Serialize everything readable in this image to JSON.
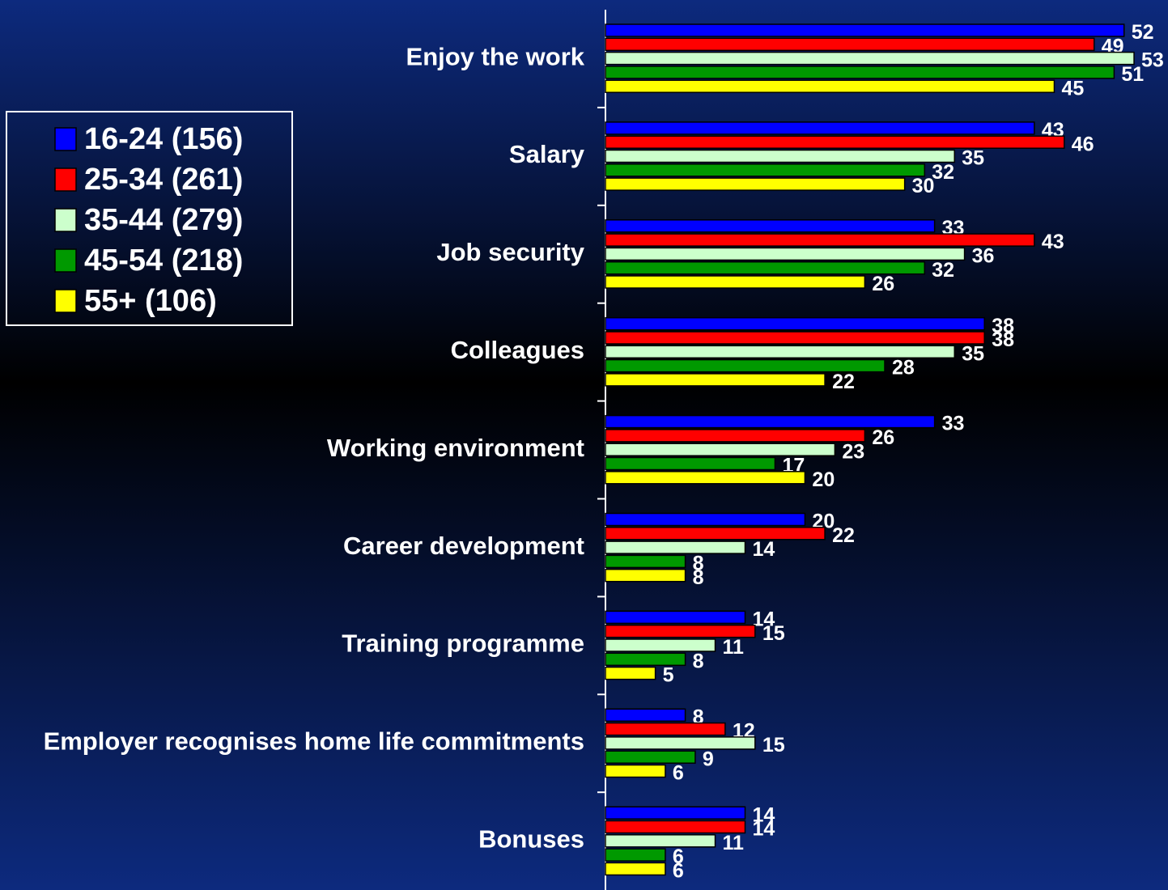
{
  "chart_data": {
    "type": "bar",
    "orientation": "horizontal",
    "categories": [
      "Enjoy the work",
      "Salary",
      "Job security",
      "Colleagues",
      "Working environment",
      "Career development",
      "Training programme",
      "Employer recognises home life commitments",
      "Bonuses"
    ],
    "series": [
      {
        "name": "16-24 (156)",
        "color": "#0000ff",
        "values": [
          52,
          43,
          33,
          38,
          33,
          20,
          14,
          8,
          14
        ]
      },
      {
        "name": "25-34 (261)",
        "color": "#ff0000",
        "values": [
          49,
          46,
          43,
          38,
          26,
          22,
          15,
          12,
          14
        ]
      },
      {
        "name": "35-44 (279)",
        "color": "#ccffcc",
        "values": [
          53,
          35,
          36,
          35,
          23,
          14,
          11,
          15,
          11
        ]
      },
      {
        "name": "45-54 (218)",
        "color": "#009900",
        "values": [
          51,
          32,
          32,
          28,
          17,
          8,
          8,
          9,
          6
        ]
      },
      {
        "name": "55+ (106)",
        "color": "#ffff00",
        "values": [
          45,
          30,
          26,
          22,
          20,
          8,
          5,
          6,
          6
        ]
      }
    ],
    "xlim": [
      0,
      56
    ],
    "legend": "left"
  }
}
